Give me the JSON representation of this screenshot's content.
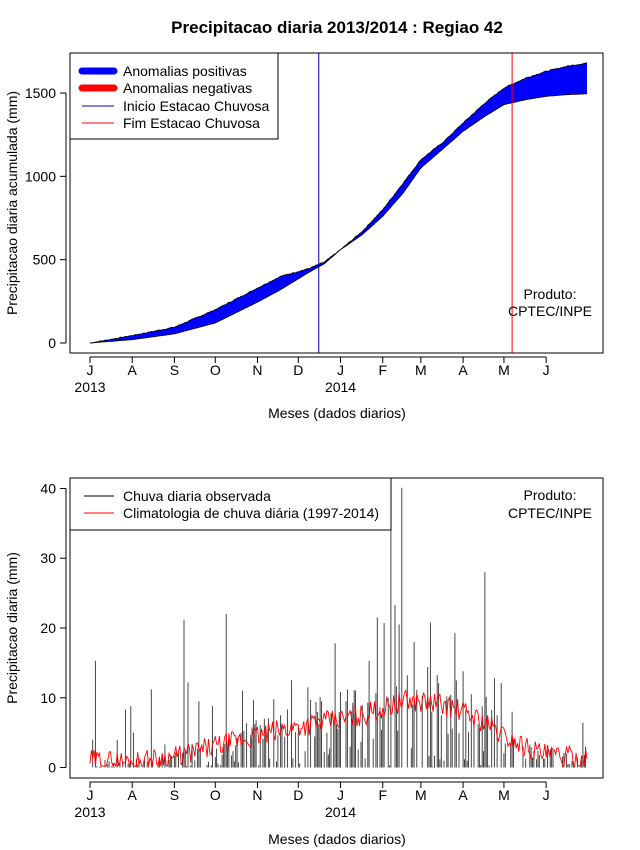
{
  "chart_data": [
    {
      "type": "area",
      "title": "Precipitacao diaria 2013/2014 : Regiao 42",
      "xlabel": "Meses (dados diarios)",
      "ylabel": "Precipitacao diaria acumulada (mm)",
      "x_range_days": [
        0,
        365
      ],
      "ylim": [
        -60,
        1740
      ],
      "y_ticks": [
        0,
        500,
        1000,
        1500
      ],
      "month_ticks": [
        {
          "label": "J",
          "day": 0
        },
        {
          "label": "A",
          "day": 31
        },
        {
          "label": "S",
          "day": 62
        },
        {
          "label": "O",
          "day": 92
        },
        {
          "label": "N",
          "day": 123
        },
        {
          "label": "D",
          "day": 153
        },
        {
          "label": "J",
          "day": 184
        },
        {
          "label": "F",
          "day": 215
        },
        {
          "label": "M",
          "day": 243
        },
        {
          "label": "A",
          "day": 274
        },
        {
          "label": "M",
          "day": 304
        },
        {
          "label": "J",
          "day": 335
        }
      ],
      "year_labels": [
        {
          "label": "2013",
          "day": 0
        },
        {
          "label": "2014",
          "day": 184
        }
      ],
      "observed_curve": {
        "days": [
          0,
          31,
          62,
          92,
          123,
          140,
          160,
          172,
          184,
          200,
          215,
          230,
          243,
          260,
          274,
          290,
          304,
          320,
          335,
          350,
          365
        ],
        "values": [
          0,
          45,
          95,
          200,
          330,
          400,
          445,
          485,
          560,
          670,
          800,
          960,
          1100,
          1210,
          1320,
          1440,
          1530,
          1590,
          1630,
          1660,
          1680
        ]
      },
      "climatology_curve": {
        "days": [
          0,
          31,
          62,
          92,
          123,
          140,
          160,
          172,
          184,
          200,
          215,
          230,
          243,
          260,
          274,
          290,
          304,
          320,
          335,
          350,
          365
        ],
        "values": [
          0,
          20,
          55,
          120,
          245,
          320,
          420,
          475,
          560,
          650,
          760,
          900,
          1050,
          1170,
          1270,
          1360,
          1430,
          1460,
          1480,
          1490,
          1495
        ]
      },
      "rainy_season_start_day": 168,
      "rainy_season_end_day": 310,
      "legend": [
        {
          "label": "Anomalias positivas",
          "color": "#0000ff",
          "style": "thick"
        },
        {
          "label": "Anomalias negativas",
          "color": "#ff0000",
          "style": "thick"
        },
        {
          "label": "Inicio Estacao Chuvosa",
          "color": "#0000aa",
          "style": "thin"
        },
        {
          "label": "Fim Estacao Chuvosa",
          "color": "#ff0000",
          "style": "thin"
        }
      ],
      "legend_position": "top-left",
      "annotation": [
        "Produto:",
        "CPTEC/INPE"
      ]
    },
    {
      "type": "bar",
      "xlabel": "Meses (dados diarios)",
      "ylabel": "Precipitacao diaria (mm)",
      "x_range_days": [
        0,
        365
      ],
      "ylim": [
        -1.5,
        41.5
      ],
      "y_ticks": [
        0,
        10,
        20,
        30,
        40
      ],
      "month_ticks": [
        {
          "label": "J",
          "day": 0
        },
        {
          "label": "A",
          "day": 31
        },
        {
          "label": "S",
          "day": 62
        },
        {
          "label": "O",
          "day": 92
        },
        {
          "label": "N",
          "day": 123
        },
        {
          "label": "D",
          "day": 153
        },
        {
          "label": "J",
          "day": 184
        },
        {
          "label": "F",
          "day": 215
        },
        {
          "label": "M",
          "day": 243
        },
        {
          "label": "A",
          "day": 274
        },
        {
          "label": "M",
          "day": 304
        },
        {
          "label": "J",
          "day": 335
        }
      ],
      "year_labels": [
        {
          "label": "2013",
          "day": 0
        },
        {
          "label": "2014",
          "day": 184
        }
      ],
      "daily_rain_peaks": [
        {
          "day": 4,
          "value": 15.3
        },
        {
          "day": 2,
          "value": 4.0
        },
        {
          "day": 20,
          "value": 4.0
        },
        {
          "day": 26,
          "value": 8.3
        },
        {
          "day": 30,
          "value": 8.8
        },
        {
          "day": 32,
          "value": 5.0
        },
        {
          "day": 45,
          "value": 11.2
        },
        {
          "day": 55,
          "value": 3.3
        },
        {
          "day": 69,
          "value": 21.2
        },
        {
          "day": 72,
          "value": 12.2
        },
        {
          "day": 80,
          "value": 9.5
        },
        {
          "day": 90,
          "value": 8.8
        },
        {
          "day": 100,
          "value": 22.0
        },
        {
          "day": 112,
          "value": 11.0
        },
        {
          "day": 120,
          "value": 9.7
        },
        {
          "day": 128,
          "value": 7.0
        },
        {
          "day": 135,
          "value": 9.8
        },
        {
          "day": 148,
          "value": 12.5
        },
        {
          "day": 160,
          "value": 11.5
        },
        {
          "day": 170,
          "value": 9.5
        },
        {
          "day": 180,
          "value": 17.8
        },
        {
          "day": 188,
          "value": 9.5
        },
        {
          "day": 195,
          "value": 11.0
        },
        {
          "day": 205,
          "value": 15.3
        },
        {
          "day": 211,
          "value": 21.5
        },
        {
          "day": 216,
          "value": 20.7
        },
        {
          "day": 221,
          "value": 40.1
        },
        {
          "day": 224,
          "value": 23.3
        },
        {
          "day": 227,
          "value": 20.5
        },
        {
          "day": 229,
          "value": 40.1
        },
        {
          "day": 233,
          "value": 13.2
        },
        {
          "day": 238,
          "value": 18.0
        },
        {
          "day": 244,
          "value": 10.3
        },
        {
          "day": 250,
          "value": 20.8
        },
        {
          "day": 256,
          "value": 12.1
        },
        {
          "day": 262,
          "value": 10.2
        },
        {
          "day": 268,
          "value": 19.3
        },
        {
          "day": 274,
          "value": 13.8
        },
        {
          "day": 280,
          "value": 10.5
        },
        {
          "day": 290,
          "value": 28.0
        },
        {
          "day": 297,
          "value": 12.8
        },
        {
          "day": 302,
          "value": 12.1
        },
        {
          "day": 310,
          "value": 8.0
        },
        {
          "day": 318,
          "value": 3.0
        },
        {
          "day": 330,
          "value": 1.8
        },
        {
          "day": 350,
          "value": 2.0
        },
        {
          "day": 362,
          "value": 6.4
        },
        {
          "day": 364,
          "value": 3.0
        }
      ],
      "climatology_curve": {
        "days": [
          0,
          31,
          62,
          92,
          123,
          153,
          184,
          200,
          215,
          230,
          243,
          260,
          274,
          290,
          304,
          320,
          335,
          350,
          365
        ],
        "values": [
          1.0,
          0.8,
          1.5,
          3.0,
          4.5,
          6.0,
          6.8,
          7.5,
          8.5,
          9.5,
          9.5,
          9.0,
          8.0,
          6.5,
          4.5,
          3.0,
          1.8,
          1.5,
          1.2
        ]
      },
      "legend": [
        {
          "label": "Chuva diaria observada",
          "color": "#000000"
        },
        {
          "label": "Climatologia de chuva diária (1997-2014)",
          "color": "#ff0000"
        }
      ],
      "legend_position": "top-left",
      "annotation": [
        "Produto:",
        "CPTEC/INPE"
      ]
    }
  ]
}
